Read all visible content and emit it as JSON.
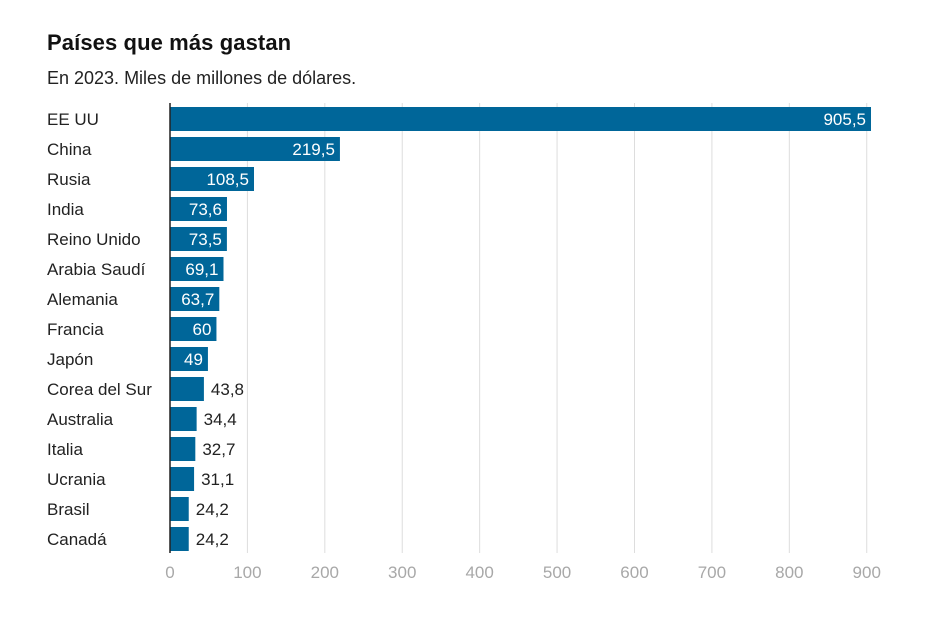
{
  "chart_data": {
    "type": "bar",
    "orientation": "horizontal",
    "title": "Países que más gastan",
    "subtitle": "En 2023. Miles de millones de dólares.",
    "categories": [
      "EE UU",
      "China",
      "Rusia",
      "India",
      "Reino Unido",
      "Arabia Saudí",
      "Alemania",
      "Francia",
      "Japón",
      "Corea del Sur",
      "Australia",
      "Italia",
      "Ucrania",
      "Brasil",
      "Canadá"
    ],
    "values": [
      905.5,
      219.5,
      108.5,
      73.6,
      73.5,
      69.1,
      63.7,
      60,
      49,
      43.8,
      34.4,
      32.7,
      31.1,
      24.2,
      24.2
    ],
    "value_labels": [
      "905,5",
      "219,5",
      "108,5",
      "73,6",
      "73,5",
      "69,1",
      "63,7",
      "60",
      "49",
      "43,8",
      "34,4",
      "32,7",
      "31,1",
      "24,2",
      "24,2"
    ],
    "xlim": [
      0,
      905.5
    ],
    "xticks": [
      0,
      100,
      200,
      300,
      400,
      500,
      600,
      700,
      800,
      900
    ],
    "xtick_labels": [
      "0",
      "100",
      "200",
      "300",
      "400",
      "500",
      "600",
      "700",
      "800",
      "900"
    ],
    "grid": true,
    "legend": false,
    "bar_color": "#006699",
    "grid_color": "#dddddd",
    "axis_color": "#222222",
    "tick_color": "#a8a8a8"
  }
}
